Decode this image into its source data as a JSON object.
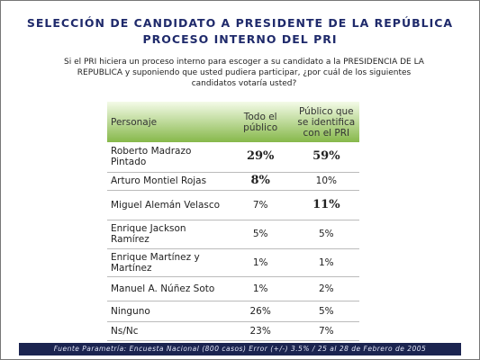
{
  "header": {
    "title": "SELECCIÓN DE CANDIDATO A PRESIDENTE DE LA REPÚBLICA",
    "subtitle": "PROCESO INTERNO DEL PRI"
  },
  "question": "Si el PRI hiciera un proceso interno para escoger a su candidato a la PRESIDENCIA DE LA REPUBLICA y suponiendo que usted pudiera participar, ¿por cuál de los siguientes candidatos votaría usted?",
  "table": {
    "columns": [
      "Personaje",
      "Todo el público",
      "Público que se identifica con el PRI"
    ],
    "rows": [
      [
        "Roberto Madrazo Pintado",
        "29%",
        "59%"
      ],
      [
        "Arturo Montiel Rojas",
        "8%",
        "10%"
      ],
      [
        "Miguel Alemán Velasco",
        "7%",
        "11%"
      ],
      [
        "Enrique Jackson Ramírez",
        "5%",
        "5%"
      ],
      [
        "Enrique Martínez y Martínez",
        "1%",
        "1%"
      ],
      [
        "Manuel A. Núñez Soto",
        "1%",
        "2%"
      ],
      [
        "Ninguno",
        "26%",
        "5%"
      ],
      [
        "Ns/Nc",
        "23%",
        "7%"
      ]
    ]
  },
  "footer": "Fuente Parametría: Encuesta Nacional (800 casos) Error (+/-) 3.5% / 25 al 28 de Febrero de 2005"
}
